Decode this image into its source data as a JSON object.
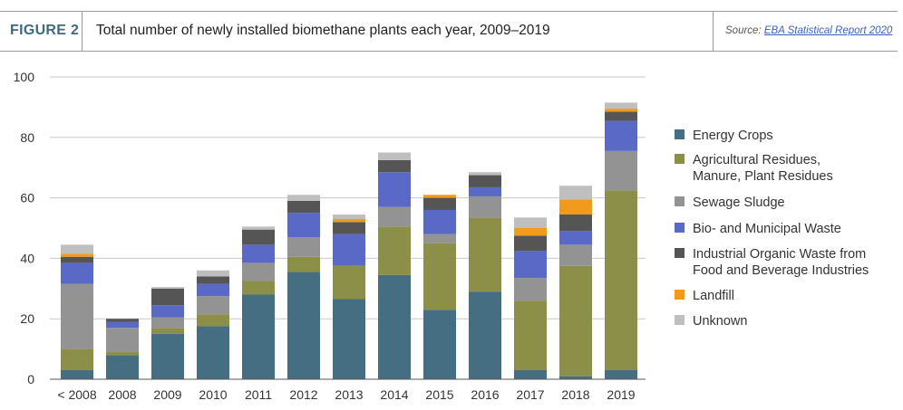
{
  "header": {
    "figure_label": "FIGURE 2",
    "title": "Total number of newly installed biomethane plants each year, 2009–2019",
    "source_prefix": "Source:",
    "source_link": "EBA Statistical Report 2020"
  },
  "colors": {
    "Energy Crops": "#466e82",
    "Agricultural Residues": "#8c8f48",
    "Sewage Sludge": "#939393",
    "Bio- and Municipal Waste": "#5a69c5",
    "Industrial Organic Waste": "#555555",
    "Landfill": "#f29a1c",
    "Unknown": "#bfbfbf"
  },
  "chart_data": {
    "type": "bar",
    "stacked": true,
    "title": "",
    "xlabel": "",
    "ylabel": "",
    "ylim": [
      0,
      100
    ],
    "yticks": [
      0,
      20,
      40,
      60,
      80,
      100
    ],
    "grid": true,
    "legend_position": "right",
    "categories": [
      "< 2008",
      "2008",
      "2009",
      "2010",
      "2011",
      "2012",
      "2013",
      "2014",
      "2015",
      "2016",
      "2017",
      "2018",
      "2019"
    ],
    "series": [
      {
        "name": "Energy Crops",
        "legend": [
          "Energy Crops"
        ],
        "values": [
          3,
          8,
          15,
          17.5,
          28,
          35.5,
          26.5,
          34.5,
          23,
          29,
          3,
          1,
          3
        ]
      },
      {
        "name": "Agricultural Residues, Manure, Plant Residues",
        "legend": [
          "Agricultural Residues,",
          "Manure, Plant Residues"
        ],
        "values": [
          7,
          1,
          2,
          4,
          4.5,
          5,
          11,
          16,
          22,
          24.5,
          23,
          36.5,
          59.5
        ]
      },
      {
        "name": "Sewage Sludge",
        "legend": [
          "Sewage Sludge"
        ],
        "values": [
          21.5,
          8,
          3.5,
          6,
          6,
          6.5,
          0,
          6.5,
          3,
          7,
          7.5,
          7,
          13
        ]
      },
      {
        "name": "Bio- and Municipal Waste",
        "legend": [
          "Bio- and Municipal Waste"
        ],
        "values": [
          7,
          2,
          4,
          4,
          6,
          8,
          10.5,
          11.5,
          8,
          3,
          9,
          4.5,
          10
        ]
      },
      {
        "name": "Industrial Organic Waste from Food and Beverage Industries",
        "legend": [
          "Industrial Organic Waste from",
          "Food and Beverage Industries"
        ],
        "values": [
          2,
          1,
          5.5,
          2.5,
          5,
          4,
          4,
          4,
          4,
          4,
          5,
          5.5,
          3
        ]
      },
      {
        "name": "Landfill",
        "legend": [
          "Landfill"
        ],
        "values": [
          1,
          0,
          0,
          0,
          0,
          0,
          1,
          0,
          1,
          0,
          2.5,
          5,
          1
        ]
      },
      {
        "name": "Unknown",
        "legend": [
          "Unknown"
        ],
        "values": [
          3,
          0,
          0.5,
          2,
          1,
          2,
          1.5,
          2.5,
          0,
          1,
          3.5,
          4.5,
          2
        ]
      }
    ]
  }
}
